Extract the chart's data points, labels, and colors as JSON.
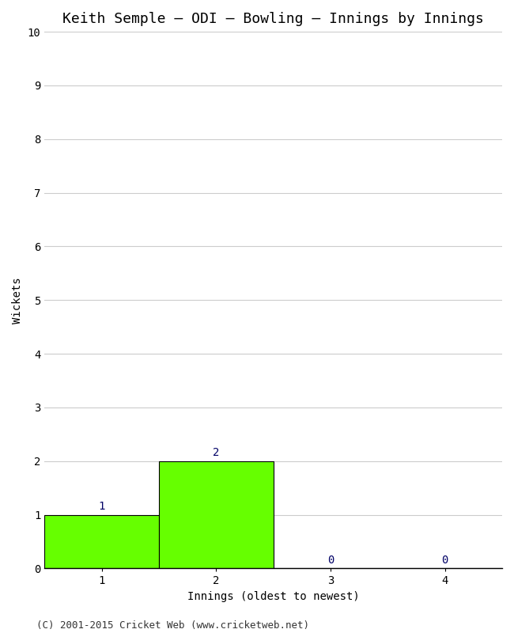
{
  "title": "Keith Semple – ODI – Bowling – Innings by Innings",
  "xlabel": "Innings (oldest to newest)",
  "ylabel": "Wickets",
  "categories": [
    1,
    2,
    3,
    4
  ],
  "values": [
    1,
    2,
    0,
    0
  ],
  "bar_color": "#66ff00",
  "bar_edge_color": "#000000",
  "ylim": [
    0,
    10
  ],
  "yticks": [
    0,
    1,
    2,
    3,
    4,
    5,
    6,
    7,
    8,
    9,
    10
  ],
  "xticks": [
    1,
    2,
    3,
    4
  ],
  "xlim": [
    0.5,
    4.5
  ],
  "background_color": "#ffffff",
  "grid_color": "#cccccc",
  "title_fontsize": 13,
  "label_fontsize": 10,
  "tick_fontsize": 10,
  "annotation_fontsize": 10,
  "annotation_color": "#000066",
  "footer": "(C) 2001-2015 Cricket Web (www.cricketweb.net)",
  "footer_fontsize": 9
}
